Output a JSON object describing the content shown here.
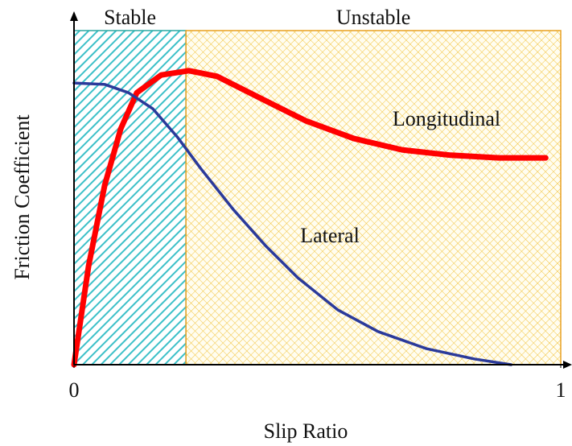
{
  "chart_data": {
    "type": "line",
    "x_label": "Slip Ratio",
    "y_label": "Friction Coefficient",
    "xlim": [
      0,
      1
    ],
    "ylim": [
      0,
      1
    ],
    "xticks": [
      0,
      1
    ],
    "regions": [
      {
        "label": "Stable",
        "x": [
          0,
          0.23
        ],
        "color": "#3cc0c8",
        "border": "#2aa7a0",
        "pattern": "diagonal"
      },
      {
        "label": "Unstable",
        "x": [
          0.23,
          1
        ],
        "color": "#f2c23a",
        "border": "#e8a020",
        "pattern": "cross"
      }
    ],
    "series": [
      {
        "name": "Longitudinal",
        "color": "#ff0000",
        "x": [
          0,
          0.03,
          0.063,
          0.096,
          0.129,
          0.179,
          0.236,
          0.294,
          0.377,
          0.476,
          0.575,
          0.674,
          0.774,
          0.873,
          0.969
        ],
        "values": [
          0,
          0.296,
          0.537,
          0.706,
          0.814,
          0.867,
          0.88,
          0.863,
          0.802,
          0.73,
          0.677,
          0.643,
          0.627,
          0.619,
          0.619
        ]
      },
      {
        "name": "Lateral",
        "color": "#2b3a9a",
        "x": [
          0,
          0.063,
          0.112,
          0.162,
          0.212,
          0.261,
          0.327,
          0.393,
          0.46,
          0.542,
          0.625,
          0.724,
          0.823,
          0.898
        ],
        "values": [
          0.843,
          0.839,
          0.814,
          0.766,
          0.682,
          0.586,
          0.465,
          0.357,
          0.26,
          0.164,
          0.099,
          0.048,
          0.017,
          0
        ]
      }
    ]
  }
}
